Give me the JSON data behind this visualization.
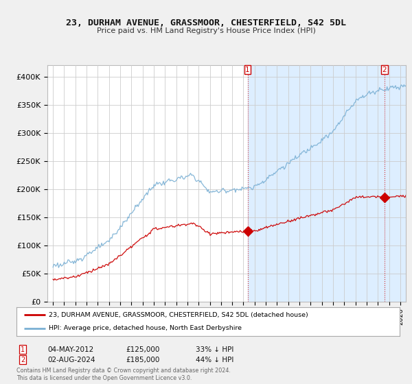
{
  "title": "23, DURHAM AVENUE, GRASSMOOR, CHESTERFIELD, S42 5DL",
  "subtitle": "Price paid vs. HM Land Registry's House Price Index (HPI)",
  "ylim": [
    0,
    420000
  ],
  "yticks": [
    0,
    50000,
    100000,
    150000,
    200000,
    250000,
    300000,
    350000,
    400000
  ],
  "ytick_labels": [
    "£0",
    "£50K",
    "£100K",
    "£150K",
    "£200K",
    "£250K",
    "£300K",
    "£350K",
    "£400K"
  ],
  "bg_color": "#f0f0f0",
  "plot_bg_color": "#ffffff",
  "grid_color": "#cccccc",
  "red_color": "#cc0000",
  "blue_color": "#7ab0d4",
  "shade_color": "#ddeeff",
  "sale1_year": 2012.37,
  "sale1_price": 125000,
  "sale1_pct": "33%",
  "sale1_date": "04-MAY-2012",
  "sale2_year": 2024.58,
  "sale2_price": 185000,
  "sale2_pct": "44%",
  "sale2_date": "02-AUG-2024",
  "legend_label1": "23, DURHAM AVENUE, GRASSMOOR, CHESTERFIELD, S42 5DL (detached house)",
  "legend_label2": "HPI: Average price, detached house, North East Derbyshire",
  "footnote": "Contains HM Land Registry data © Crown copyright and database right 2024.\nThis data is licensed under the Open Government Licence v3.0.",
  "xmin": 1995,
  "xmax": 2026.5
}
